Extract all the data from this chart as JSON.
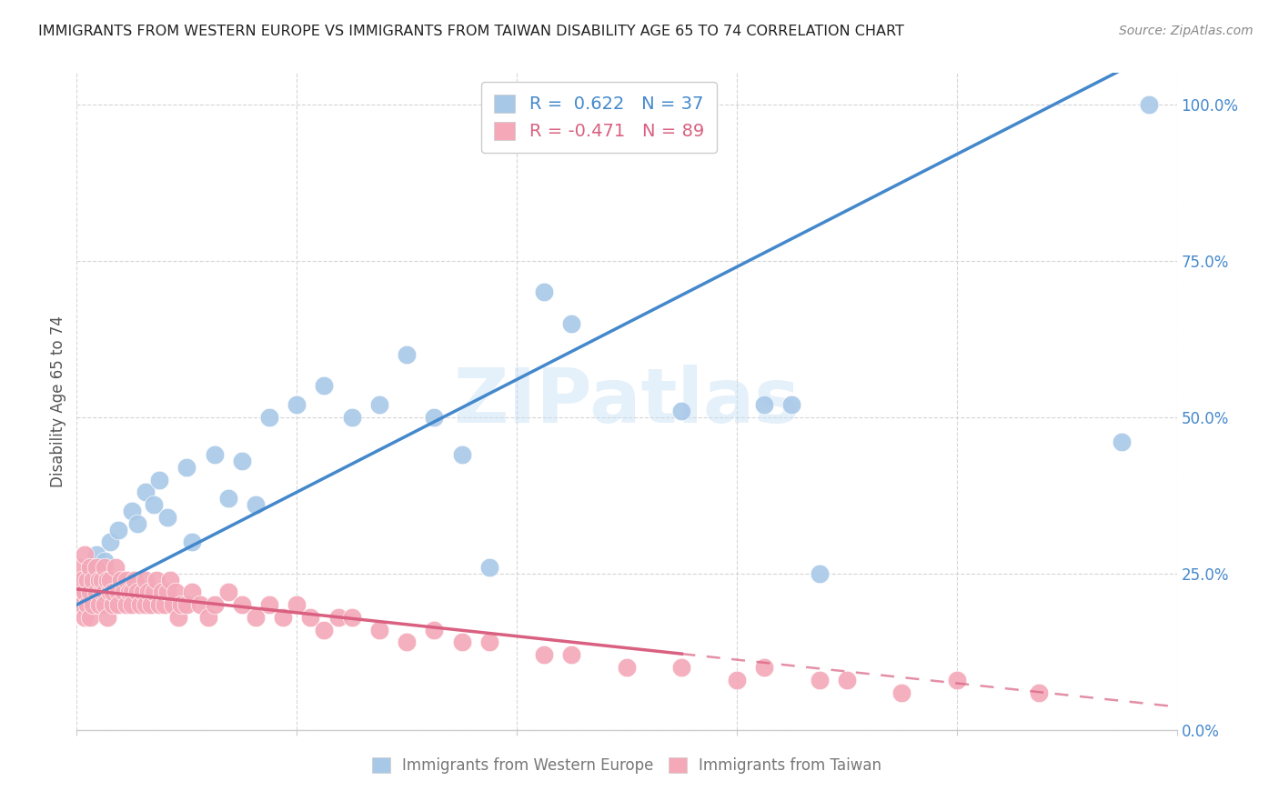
{
  "title": "IMMIGRANTS FROM WESTERN EUROPE VS IMMIGRANTS FROM TAIWAN DISABILITY AGE 65 TO 74 CORRELATION CHART",
  "source": "Source: ZipAtlas.com",
  "ylabel": "Disability Age 65 to 74",
  "yticks_labels": [
    "0.0%",
    "25.0%",
    "50.0%",
    "75.0%",
    "100.0%"
  ],
  "ytick_vals": [
    0,
    25,
    50,
    75,
    100
  ],
  "legend_blue_label": "R =  0.622   N = 37",
  "legend_pink_label": "R = -0.471   N = 89",
  "legend_blue_label2": "Immigrants from Western Europe",
  "legend_pink_label2": "Immigrants from Taiwan",
  "blue_color": "#a8c8e8",
  "pink_color": "#f4a8b8",
  "blue_line_color": "#4488cc",
  "pink_line_color": "#d96080",
  "watermark": "ZIPatlas",
  "blue_scatter_x": [
    0.001,
    0.002,
    0.003,
    0.005,
    0.007,
    0.01,
    0.012,
    0.015,
    0.02,
    0.022,
    0.025,
    0.028,
    0.03,
    0.033,
    0.04,
    0.042,
    0.05,
    0.055,
    0.06,
    0.065,
    0.07,
    0.08,
    0.09,
    0.1,
    0.11,
    0.12,
    0.13,
    0.14,
    0.15,
    0.17,
    0.18,
    0.22,
    0.25,
    0.26,
    0.27,
    0.38,
    0.39
  ],
  "blue_scatter_y": [
    20,
    22,
    24,
    26,
    28,
    27,
    30,
    32,
    35,
    33,
    38,
    36,
    40,
    34,
    42,
    30,
    44,
    37,
    43,
    36,
    50,
    52,
    55,
    50,
    52,
    60,
    50,
    44,
    26,
    70,
    65,
    51,
    52,
    52,
    25,
    46,
    100
  ],
  "pink_scatter_x": [
    0.001,
    0.001,
    0.002,
    0.002,
    0.003,
    0.003,
    0.003,
    0.004,
    0.004,
    0.005,
    0.005,
    0.005,
    0.006,
    0.006,
    0.007,
    0.007,
    0.008,
    0.008,
    0.009,
    0.009,
    0.01,
    0.01,
    0.01,
    0.011,
    0.011,
    0.012,
    0.012,
    0.013,
    0.013,
    0.014,
    0.015,
    0.015,
    0.016,
    0.017,
    0.018,
    0.018,
    0.019,
    0.02,
    0.02,
    0.021,
    0.022,
    0.023,
    0.024,
    0.025,
    0.025,
    0.026,
    0.027,
    0.028,
    0.029,
    0.03,
    0.031,
    0.032,
    0.033,
    0.034,
    0.035,
    0.036,
    0.037,
    0.038,
    0.04,
    0.042,
    0.045,
    0.048,
    0.05,
    0.055,
    0.06,
    0.065,
    0.07,
    0.075,
    0.08,
    0.085,
    0.09,
    0.095,
    0.1,
    0.11,
    0.12,
    0.13,
    0.14,
    0.15,
    0.17,
    0.18,
    0.2,
    0.22,
    0.24,
    0.25,
    0.27,
    0.28,
    0.3,
    0.32,
    0.35
  ],
  "pink_scatter_y": [
    22,
    26,
    24,
    20,
    28,
    22,
    18,
    24,
    20,
    26,
    22,
    18,
    24,
    20,
    26,
    22,
    24,
    20,
    22,
    24,
    22,
    26,
    20,
    24,
    18,
    22,
    24,
    20,
    22,
    26,
    22,
    20,
    24,
    22,
    20,
    24,
    22,
    22,
    20,
    24,
    22,
    20,
    22,
    20,
    24,
    22,
    20,
    22,
    24,
    20,
    22,
    20,
    22,
    24,
    20,
    22,
    18,
    20,
    20,
    22,
    20,
    18,
    20,
    22,
    20,
    18,
    20,
    18,
    20,
    18,
    16,
    18,
    18,
    16,
    14,
    16,
    14,
    14,
    12,
    12,
    10,
    10,
    8,
    10,
    8,
    8,
    6,
    8,
    6
  ],
  "xlim": [
    0.0,
    0.4
  ],
  "ylim": [
    0,
    105
  ],
  "blue_line_slope": 225.0,
  "blue_line_intercept": 20.0,
  "pink_line_slope": -47.0,
  "pink_line_intercept": 22.5,
  "pink_solid_end": 0.22,
  "pink_dash_end": 0.42,
  "xtick_positions": [
    0.0,
    0.08,
    0.16,
    0.24,
    0.32,
    0.4
  ],
  "grid_color": "#cccccc",
  "background_color": "#ffffff",
  "title_fontsize": 11.5,
  "source_fontsize": 10,
  "ylabel_fontsize": 12,
  "ytick_fontsize": 12,
  "xtick_label_fontsize": 12,
  "scatter_size": 220
}
